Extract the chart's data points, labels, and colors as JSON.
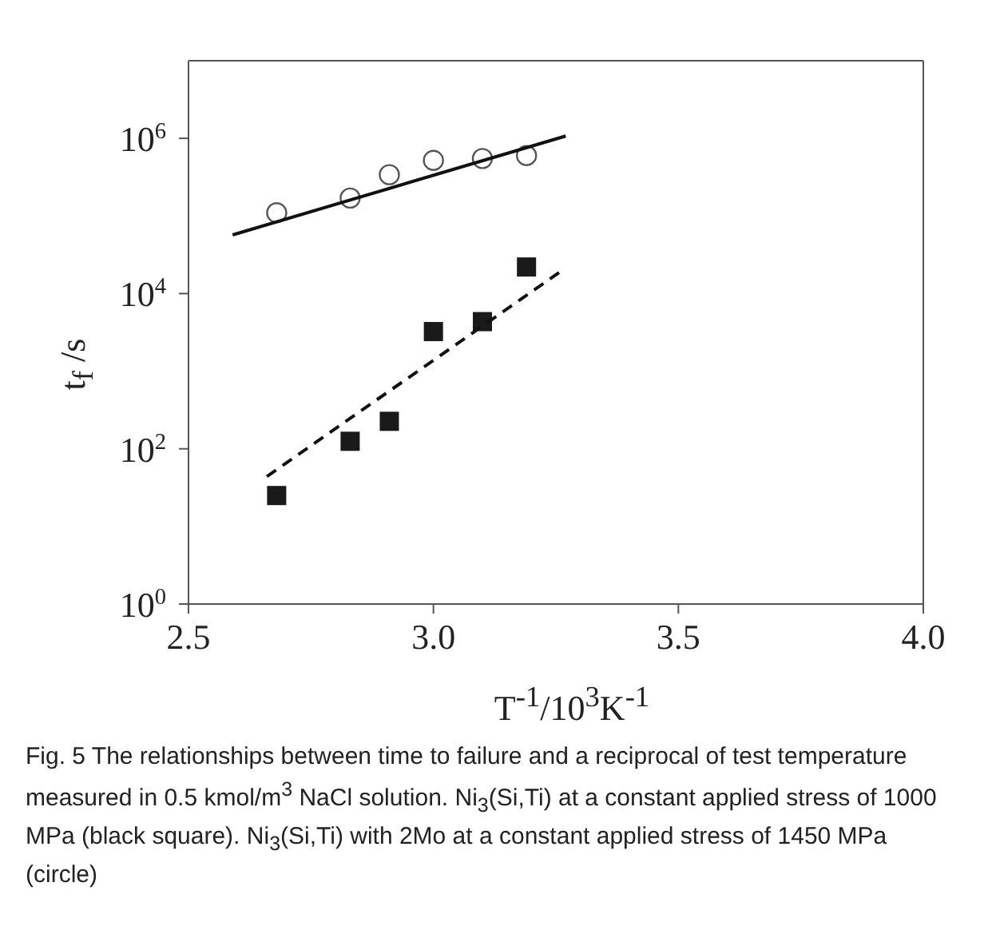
{
  "chart_data": {
    "type": "scatter",
    "xlabel": "T$^{-1}$/10$^{3}$K$^{-1}$",
    "ylabel": "t$_{f}$ /s",
    "log": "y",
    "grid": false,
    "legend": false,
    "xlim": [
      2.5,
      4.0
    ],
    "xticks": [
      2.5,
      {
        "value": 3.0,
        "label": "3.0"
      },
      3.5,
      {
        "value": 4.0,
        "label": "4.0"
      }
    ],
    "ylim": [
      1,
      10000000
    ],
    "yticks": [
      {
        "value": 1,
        "label": "10$^{0}$"
      },
      {
        "value": 100,
        "label": "10$^{2}$"
      },
      {
        "value": 10000,
        "label": "10$^{4}$"
      },
      {
        "value": 1000000,
        "label": "10$^{6}$"
      }
    ],
    "series": [
      {
        "type": "scatter",
        "marker": "circle",
        "color": "#555555",
        "x": [
          2.68,
          2.83,
          2.91,
          3.0,
          3.1,
          3.19
        ],
        "values": [
          110000,
          170000,
          340000,
          520000,
          550000,
          600000
        ]
      },
      {
        "type": "line",
        "marker": "none",
        "line_style": "solid",
        "color": "#111111",
        "x": [
          2.59,
          3.27
        ],
        "values": [
          57000,
          1070000
        ]
      },
      {
        "type": "scatter",
        "marker": "square",
        "color": "#1a1a1a",
        "x": [
          2.68,
          2.83,
          2.91,
          3.0,
          3.1,
          3.19
        ],
        "values": [
          25,
          125,
          226,
          3240,
          4350,
          22000
        ]
      },
      {
        "type": "line",
        "marker": "none",
        "line_style": "dashed",
        "color": "#111111",
        "x": [
          2.66,
          3.26
        ],
        "values": [
          44,
          19300
        ]
      }
    ],
    "annotations": [
      "Fig. 5 The relationships between time to failure and a reciprocal of test temperature measured in 0.5 kmol/m$^{3}$ NaCl solution. Ni$_{3}$(Si,Ti) at a constant applied stress of 1000 MPa (black square). Ni$_{3}$(Si,Ti) with 2Mo at a constant applied stress of 1450 MPa (circle)"
    ]
  }
}
